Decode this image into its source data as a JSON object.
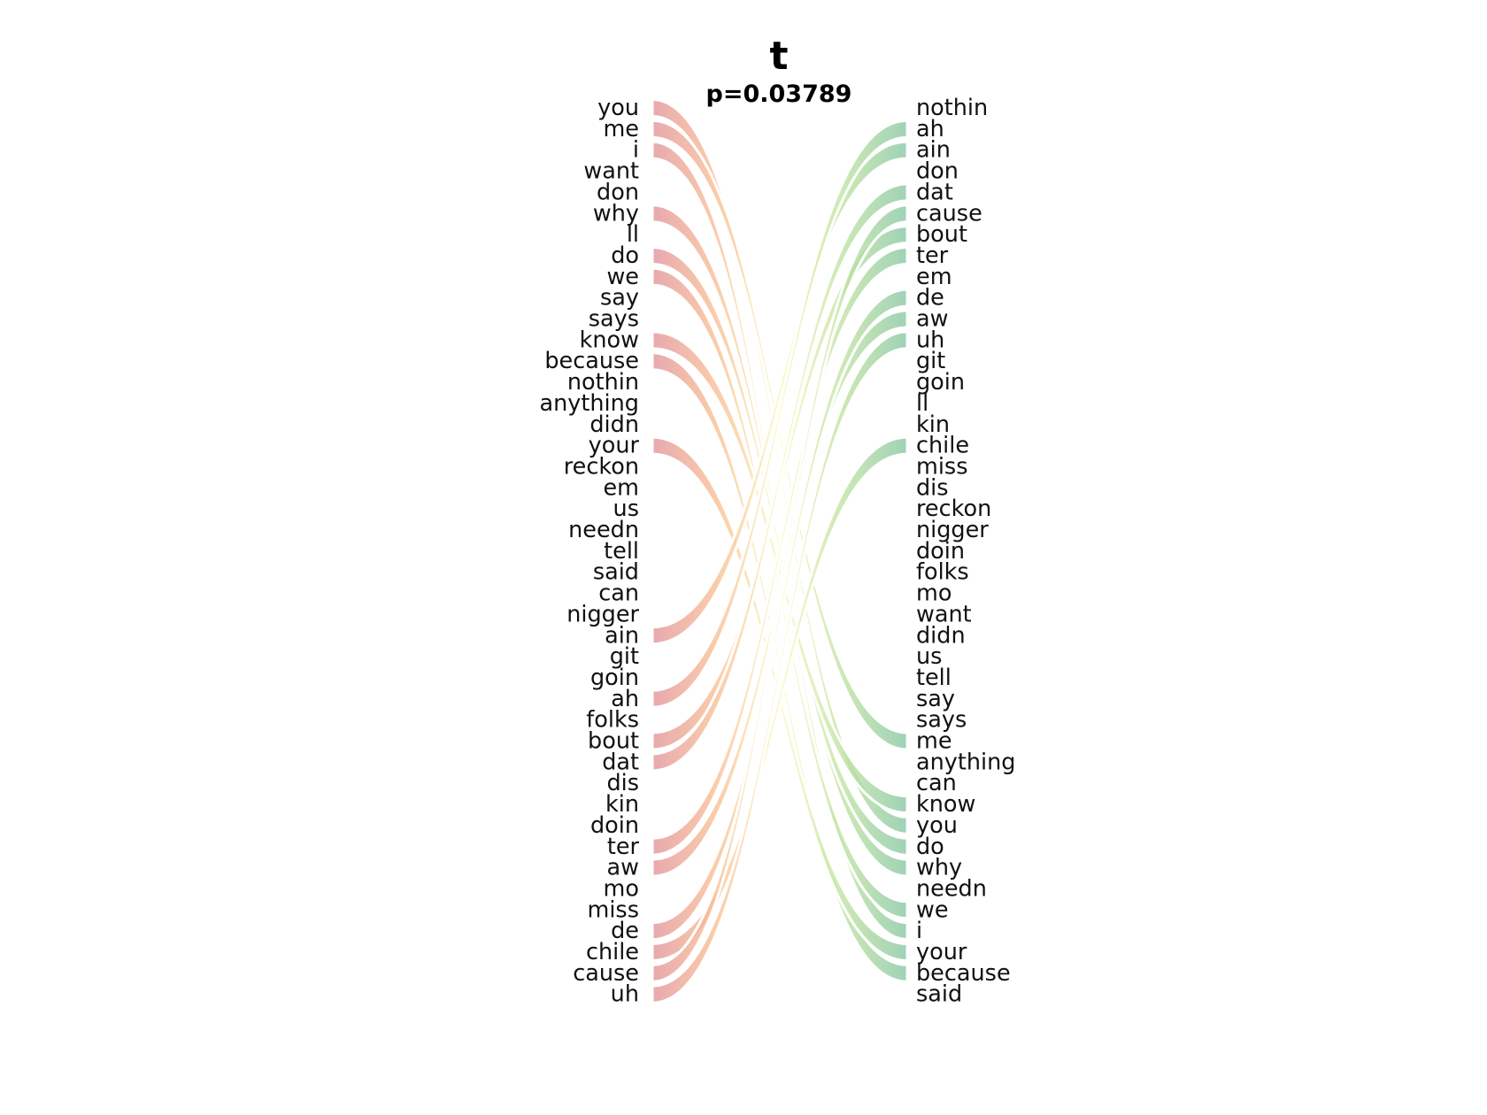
{
  "chart_data": {
    "type": "bump",
    "title": "t",
    "subtitle": "p=0.03789",
    "left_words": [
      "you",
      "me",
      "i",
      "want",
      "don",
      "why",
      "ll",
      "do",
      "we",
      "say",
      "says",
      "know",
      "because",
      "nothin",
      "anything",
      "didn",
      "your",
      "reckon",
      "em",
      "us",
      "needn",
      "tell",
      "said",
      "can",
      "nigger",
      "ain",
      "git",
      "goin",
      "ah",
      "folks",
      "bout",
      "dat",
      "dis",
      "kin",
      "doin",
      "ter",
      "aw",
      "mo",
      "miss",
      "de",
      "chile",
      "cause",
      "uh"
    ],
    "right_words": [
      "nothin",
      "ah",
      "ain",
      "don",
      "dat",
      "cause",
      "bout",
      "ter",
      "em",
      "de",
      "aw",
      "uh",
      "git",
      "goin",
      "ll",
      "kin",
      "chile",
      "miss",
      "dis",
      "reckon",
      "nigger",
      "doin",
      "folks",
      "mo",
      "want",
      "didn",
      "us",
      "tell",
      "say",
      "says",
      "me",
      "anything",
      "can",
      "know",
      "you",
      "do",
      "why",
      "needn",
      "we",
      "i",
      "your",
      "because",
      "said"
    ],
    "links": [
      {
        "word": "you",
        "left_rank": 1,
        "right_rank": 35
      },
      {
        "word": "me",
        "left_rank": 2,
        "right_rank": 31
      },
      {
        "word": "i",
        "left_rank": 3,
        "right_rank": 40
      },
      {
        "word": "why",
        "left_rank": 6,
        "right_rank": 37
      },
      {
        "word": "do",
        "left_rank": 8,
        "right_rank": 36
      },
      {
        "word": "we",
        "left_rank": 9,
        "right_rank": 39
      },
      {
        "word": "know",
        "left_rank": 12,
        "right_rank": 34
      },
      {
        "word": "because",
        "left_rank": 13,
        "right_rank": 42
      },
      {
        "word": "your",
        "left_rank": 17,
        "right_rank": 41
      },
      {
        "word": "ain",
        "left_rank": 26,
        "right_rank": 3
      },
      {
        "word": "ah",
        "left_rank": 29,
        "right_rank": 2
      },
      {
        "word": "bout",
        "left_rank": 31,
        "right_rank": 7
      },
      {
        "word": "dat",
        "left_rank": 32,
        "right_rank": 5
      },
      {
        "word": "ter",
        "left_rank": 36,
        "right_rank": 8
      },
      {
        "word": "aw",
        "left_rank": 37,
        "right_rank": 11
      },
      {
        "word": "de",
        "left_rank": 40,
        "right_rank": 10
      },
      {
        "word": "chile",
        "left_rank": 41,
        "right_rank": 17
      },
      {
        "word": "cause",
        "left_rank": 42,
        "right_rank": 6
      },
      {
        "word": "uh",
        "left_rank": 43,
        "right_rank": 12
      }
    ],
    "colors": {
      "left_band": "#e39aa0",
      "right_band": "#8ecaa9",
      "mid_band": "#f8fbc0",
      "mid_left": "#f9bf95",
      "mid_right": "#bfe2a2"
    }
  }
}
